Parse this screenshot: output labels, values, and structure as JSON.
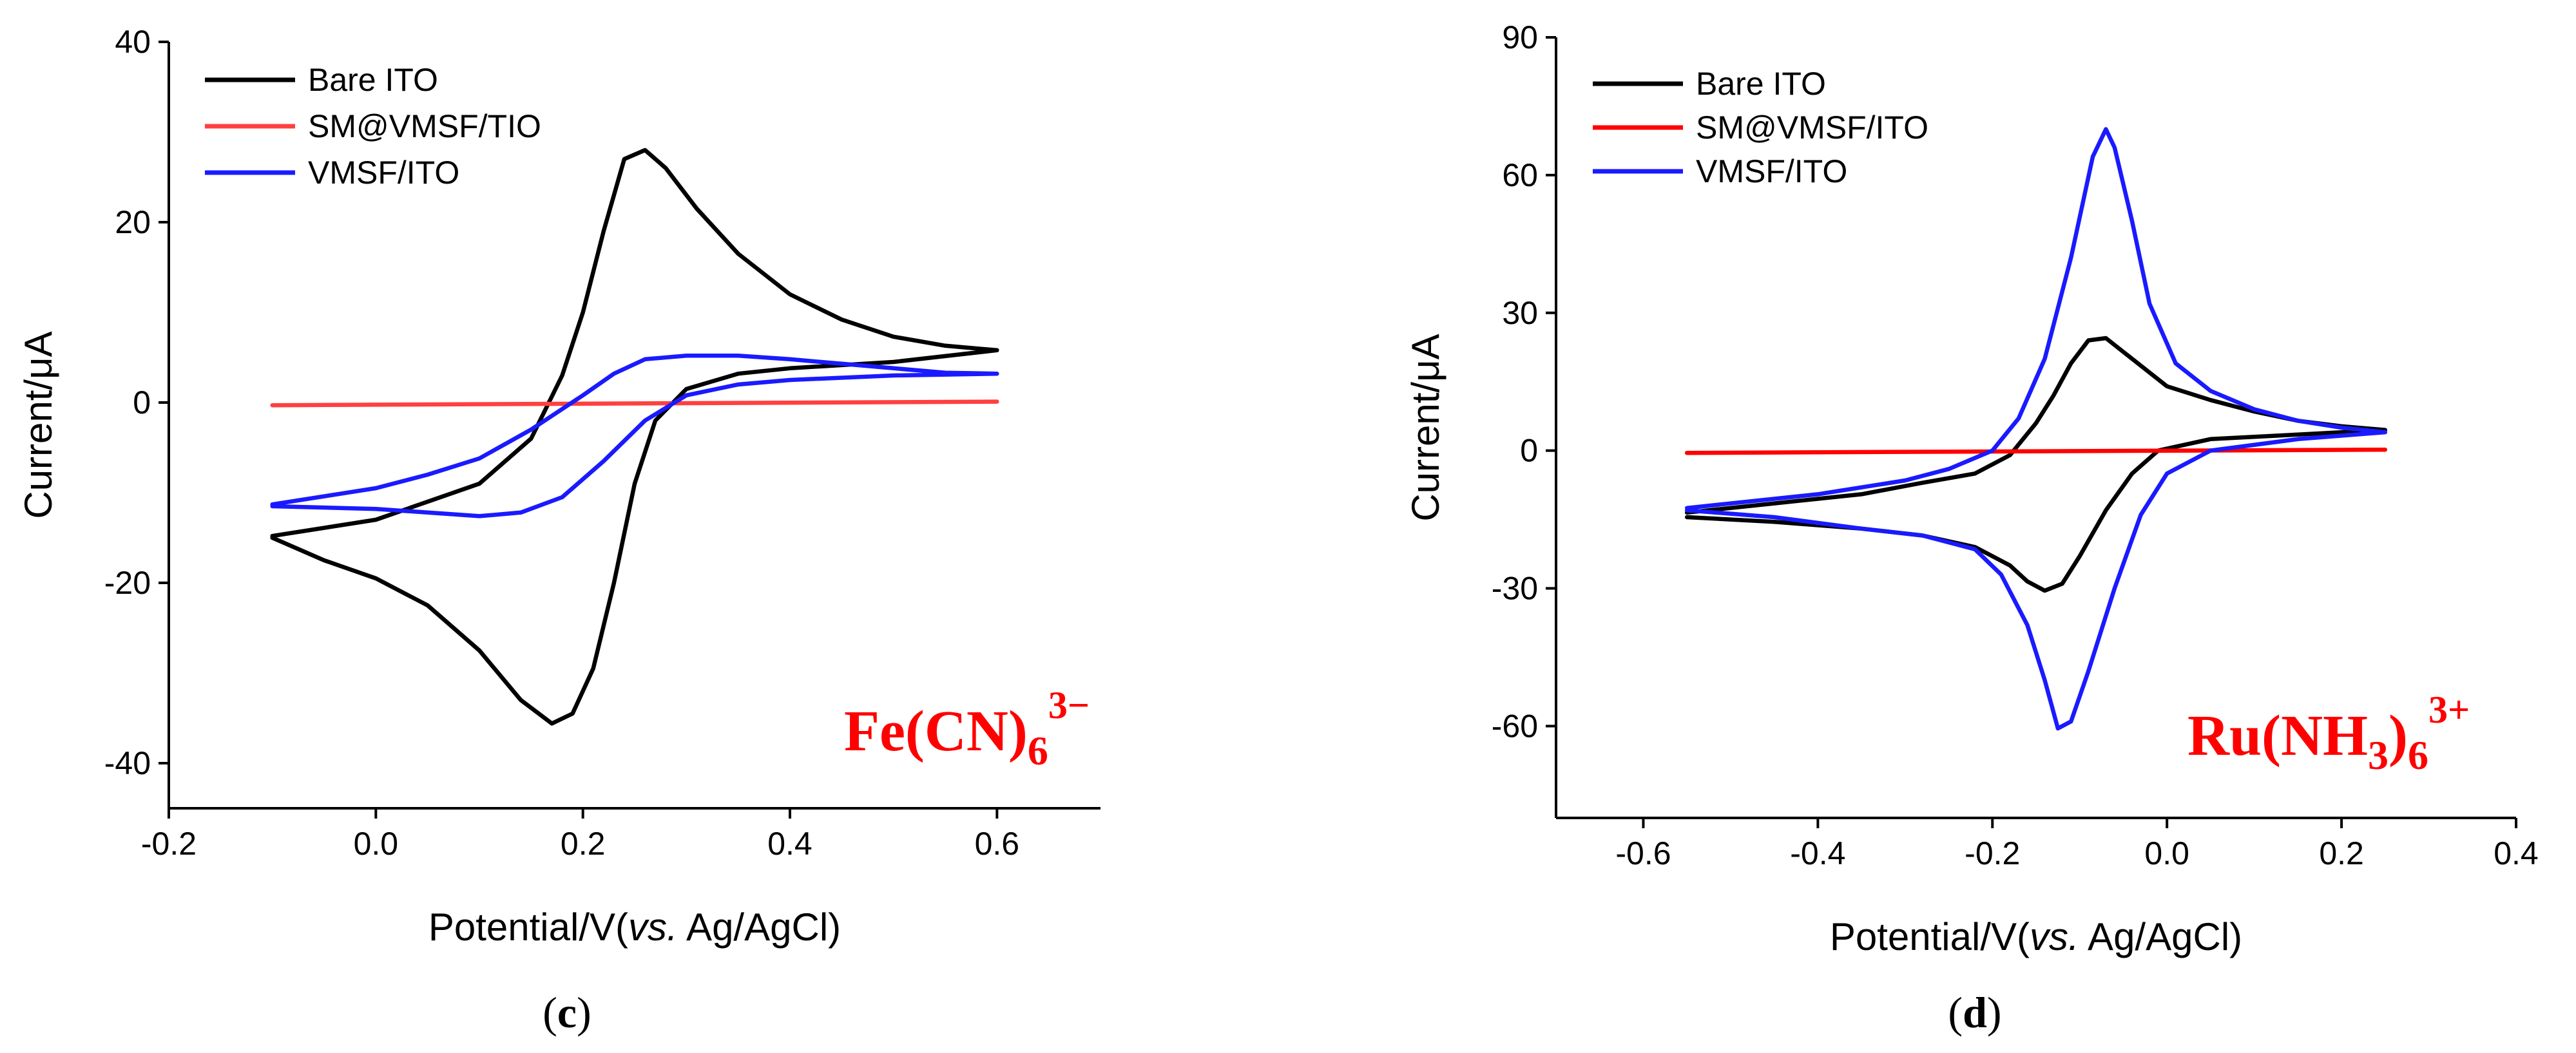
{
  "chart_data": [
    {
      "type": "line",
      "panel": "(c)",
      "xlabel_main": "Potential/V(",
      "xlabel_italic": "vs.",
      "xlabel_tail": " Ag/AgCl)",
      "ylabel": "Current/μA",
      "xlim": [
        -0.2,
        0.7
      ],
      "ylim": [
        -45,
        40
      ],
      "xticks": [
        -0.2,
        0.0,
        0.2,
        0.4,
        0.6
      ],
      "xtick_labels": [
        "-0.2",
        "0.0",
        "0.2",
        "0.4",
        "0.6"
      ],
      "yticks": [
        -40,
        -20,
        0,
        20,
        40
      ],
      "ytick_labels": [
        "-40",
        "-20",
        "0",
        "20",
        "40"
      ],
      "legend_position": "top-left",
      "annotation": {
        "base": "Fe(CN)",
        "sub": "6",
        "sup": "3−",
        "color": "#ff0000",
        "position": "bottom-right"
      },
      "series": [
        {
          "name": "Bare ITO",
          "color": "#000000",
          "points": [
            [
              -0.1,
              -15
            ],
            [
              -0.05,
              -17.5
            ],
            [
              0.0,
              -19.5
            ],
            [
              0.05,
              -22.5
            ],
            [
              0.1,
              -27.5
            ],
            [
              0.14,
              -33
            ],
            [
              0.17,
              -35.6
            ],
            [
              0.19,
              -34.5
            ],
            [
              0.21,
              -29.5
            ],
            [
              0.23,
              -20
            ],
            [
              0.25,
              -9
            ],
            [
              0.27,
              -2
            ],
            [
              0.3,
              1.5
            ],
            [
              0.35,
              3.2
            ],
            [
              0.4,
              3.8
            ],
            [
              0.5,
              4.5
            ],
            [
              0.6,
              5.8
            ],
            [
              0.55,
              6.3
            ],
            [
              0.5,
              7.3
            ],
            [
              0.45,
              9.2
            ],
            [
              0.4,
              12
            ],
            [
              0.35,
              16.5
            ],
            [
              0.31,
              21.5
            ],
            [
              0.28,
              26
            ],
            [
              0.26,
              28
            ],
            [
              0.24,
              27
            ],
            [
              0.22,
              19
            ],
            [
              0.2,
              10
            ],
            [
              0.18,
              3
            ],
            [
              0.15,
              -4
            ],
            [
              0.1,
              -9
            ],
            [
              0.0,
              -13
            ],
            [
              -0.1,
              -14.8
            ]
          ]
        },
        {
          "name": "SM@VMSF/TIO",
          "color": "#ff4040",
          "points": [
            [
              -0.1,
              -0.3
            ],
            [
              0.6,
              0.1
            ]
          ]
        },
        {
          "name": "VMSF/ITO",
          "color": "#1a1aff",
          "points": [
            [
              -0.1,
              -11.5
            ],
            [
              0.0,
              -11.8
            ],
            [
              0.05,
              -12.2
            ],
            [
              0.1,
              -12.6
            ],
            [
              0.14,
              -12.2
            ],
            [
              0.18,
              -10.5
            ],
            [
              0.22,
              -6.5
            ],
            [
              0.26,
              -2
            ],
            [
              0.3,
              0.8
            ],
            [
              0.35,
              2
            ],
            [
              0.4,
              2.5
            ],
            [
              0.5,
              3
            ],
            [
              0.6,
              3.2
            ],
            [
              0.55,
              3.3
            ],
            [
              0.5,
              3.8
            ],
            [
              0.45,
              4.3
            ],
            [
              0.4,
              4.8
            ],
            [
              0.35,
              5.2
            ],
            [
              0.3,
              5.2
            ],
            [
              0.26,
              4.8
            ],
            [
              0.23,
              3.2
            ],
            [
              0.2,
              0.8
            ],
            [
              0.15,
              -3
            ],
            [
              0.1,
              -6.2
            ],
            [
              0.05,
              -8
            ],
            [
              0.0,
              -9.5
            ],
            [
              -0.1,
              -11.3
            ]
          ]
        }
      ]
    },
    {
      "type": "line",
      "panel": "(d)",
      "xlabel_main": "Potential/V(",
      "xlabel_italic": "vs.",
      "xlabel_tail": " Ag/AgCl)",
      "ylabel": "Current/μA",
      "xlim": [
        -0.7,
        0.4
      ],
      "ylim": [
        -80,
        90
      ],
      "xticks": [
        -0.6,
        -0.4,
        -0.2,
        0.0,
        0.2,
        0.4
      ],
      "xtick_labels": [
        "-0.6",
        "-0.4",
        "-0.2",
        "0.0",
        "0.2",
        "0.4"
      ],
      "yticks": [
        -60,
        -30,
        0,
        30,
        60,
        90
      ],
      "ytick_labels": [
        "-60",
        "-30",
        "0",
        "30",
        "60",
        "90"
      ],
      "legend_position": "top-left",
      "annotation": {
        "base": "Ru(NH",
        "sub1": "3",
        "mid": ")",
        "sub": "6",
        "sup": "3+",
        "color": "#ff0000",
        "position": "bottom-right"
      },
      "series": [
        {
          "name": "Bare ITO",
          "color": "#000000",
          "points": [
            [
              -0.55,
              -14.5
            ],
            [
              -0.45,
              -15.5
            ],
            [
              -0.35,
              -17
            ],
            [
              -0.28,
              -18.5
            ],
            [
              -0.22,
              -21
            ],
            [
              -0.18,
              -25
            ],
            [
              -0.16,
              -28.5
            ],
            [
              -0.14,
              -30.5
            ],
            [
              -0.12,
              -29
            ],
            [
              -0.1,
              -23
            ],
            [
              -0.07,
              -13
            ],
            [
              -0.04,
              -5
            ],
            [
              -0.01,
              0
            ],
            [
              0.05,
              2.5
            ],
            [
              0.15,
              3.5
            ],
            [
              0.25,
              4.5
            ],
            [
              0.2,
              5.3
            ],
            [
              0.15,
              6.5
            ],
            [
              0.1,
              8.5
            ],
            [
              0.05,
              11
            ],
            [
              0.0,
              14
            ],
            [
              -0.04,
              20
            ],
            [
              -0.07,
              24.5
            ],
            [
              -0.09,
              24
            ],
            [
              -0.11,
              19
            ],
            [
              -0.13,
              12
            ],
            [
              -0.15,
              6
            ],
            [
              -0.18,
              -1
            ],
            [
              -0.22,
              -5
            ],
            [
              -0.28,
              -7
            ],
            [
              -0.35,
              -9.5
            ],
            [
              -0.45,
              -11.5
            ],
            [
              -0.55,
              -13.5
            ]
          ]
        },
        {
          "name": "SM@VMSF/ITO",
          "color": "#ff0000",
          "points": [
            [
              -0.55,
              -0.5
            ],
            [
              0.25,
              0.2
            ]
          ]
        },
        {
          "name": "VMSF/ITO",
          "color": "#1a1aff",
          "points": [
            [
              -0.55,
              -13
            ],
            [
              -0.45,
              -14.5
            ],
            [
              -0.35,
              -17
            ],
            [
              -0.28,
              -18.5
            ],
            [
              -0.22,
              -21.5
            ],
            [
              -0.19,
              -27
            ],
            [
              -0.16,
              -38
            ],
            [
              -0.14,
              -50
            ],
            [
              -0.125,
              -60.5
            ],
            [
              -0.11,
              -59
            ],
            [
              -0.09,
              -48
            ],
            [
              -0.06,
              -30
            ],
            [
              -0.03,
              -14
            ],
            [
              0.0,
              -5
            ],
            [
              0.05,
              0
            ],
            [
              0.15,
              2.5
            ],
            [
              0.25,
              4
            ],
            [
              0.2,
              5
            ],
            [
              0.15,
              6.5
            ],
            [
              0.1,
              9
            ],
            [
              0.05,
              13
            ],
            [
              0.01,
              19
            ],
            [
              -0.02,
              32
            ],
            [
              -0.04,
              50
            ],
            [
              -0.06,
              66
            ],
            [
              -0.07,
              70
            ],
            [
              -0.085,
              64
            ],
            [
              -0.11,
              42
            ],
            [
              -0.14,
              20
            ],
            [
              -0.17,
              7
            ],
            [
              -0.2,
              0
            ],
            [
              -0.25,
              -4
            ],
            [
              -0.3,
              -6.5
            ],
            [
              -0.4,
              -9.5
            ],
            [
              -0.55,
              -12.5
            ]
          ]
        }
      ]
    }
  ]
}
